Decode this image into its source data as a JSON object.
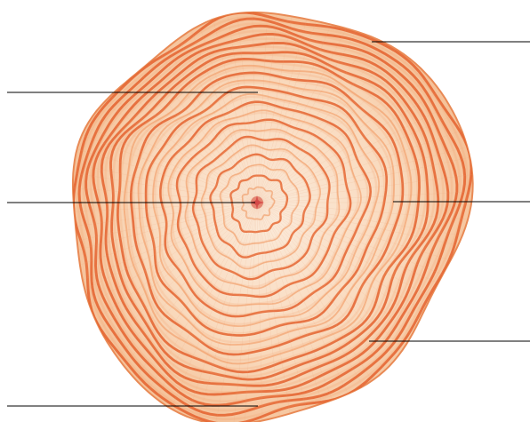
{
  "diagram": {
    "subject": "tree-trunk-cross-section",
    "colors": {
      "background": "#ffffff",
      "wood_light": "#fbe3cd",
      "wood_mid": "#f6c59c",
      "ring_dark": "#e4612e",
      "ring_light": "#f29a63",
      "pith": "#d9504f",
      "leader_line": "#000000"
    },
    "ring_count": 22,
    "callouts": [
      {
        "id": "bark-edge",
        "side": "right",
        "label": ""
      },
      {
        "id": "outer-ring-upper",
        "side": "left",
        "label": ""
      },
      {
        "id": "pith-center",
        "side": "left",
        "label": ""
      },
      {
        "id": "mid-ring-right",
        "side": "right",
        "label": ""
      },
      {
        "id": "outer-ring-lower-right",
        "side": "right",
        "label": ""
      },
      {
        "id": "lower-ring",
        "side": "left",
        "label": ""
      }
    ]
  }
}
